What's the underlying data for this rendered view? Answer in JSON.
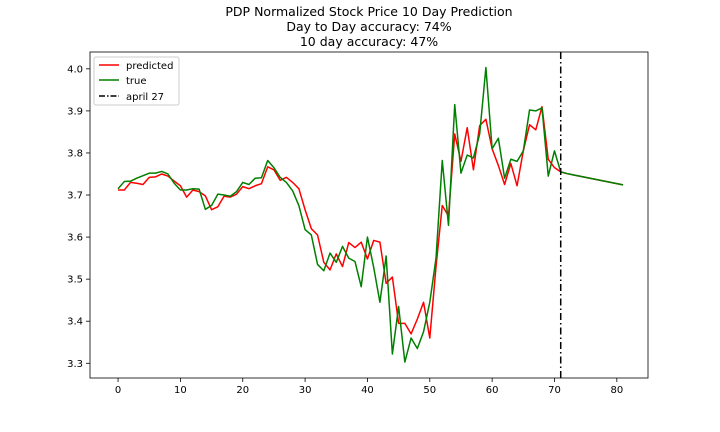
{
  "chart_data": {
    "type": "line",
    "title_lines": [
      "PDP Normalized Stock Price 10 Day Prediction",
      "Day to Day accuracy: 74%",
      "10 day accuracy: 47%"
    ],
    "xlabel": "",
    "ylabel": "",
    "xlim": [
      -4.5,
      85
    ],
    "ylim": [
      3.265,
      4.04
    ],
    "xticks": [
      0,
      10,
      20,
      30,
      40,
      50,
      60,
      70,
      80
    ],
    "yticks": [
      3.3,
      3.4,
      3.5,
      3.6,
      3.7,
      3.8,
      3.9,
      4.0
    ],
    "ytick_labels": [
      "3.3",
      "3.4",
      "3.5",
      "3.6",
      "3.7",
      "3.8",
      "3.9",
      "4.0"
    ],
    "grid": false,
    "legend_position": "top-left",
    "series": [
      {
        "name": "predicted",
        "color": "#ff0000",
        "x": [
          0,
          1,
          2,
          3,
          4,
          5,
          6,
          7,
          8,
          9,
          10,
          11,
          12,
          13,
          14,
          15,
          16,
          17,
          18,
          19,
          20,
          21,
          22,
          23,
          24,
          25,
          26,
          27,
          28,
          29,
          30,
          31,
          32,
          33,
          34,
          35,
          36,
          37,
          38,
          39,
          40,
          41,
          42,
          43,
          44,
          45,
          46,
          47,
          48,
          49,
          50,
          51,
          52,
          53,
          54,
          55,
          56,
          57,
          58,
          59,
          60,
          61,
          62,
          63,
          64,
          65,
          66,
          67,
          68,
          69,
          70,
          71,
          72,
          73,
          74,
          75,
          76,
          77,
          78,
          79,
          80,
          81
        ],
        "values": [
          3.712,
          3.712,
          3.73,
          3.728,
          3.725,
          3.742,
          3.743,
          3.75,
          3.745,
          3.733,
          3.722,
          3.695,
          3.712,
          3.708,
          3.698,
          3.665,
          3.672,
          3.697,
          3.695,
          3.702,
          3.72,
          3.715,
          3.722,
          3.727,
          3.767,
          3.76,
          3.735,
          3.742,
          3.73,
          3.715,
          3.665,
          3.62,
          3.605,
          3.54,
          3.522,
          3.56,
          3.53,
          3.587,
          3.575,
          3.588,
          3.548,
          3.592,
          3.588,
          3.49,
          3.505,
          3.395,
          3.395,
          3.37,
          3.405,
          3.445,
          3.36,
          3.53,
          3.675,
          3.65,
          3.845,
          3.78,
          3.86,
          3.76,
          3.865,
          3.88,
          3.81,
          3.77,
          3.725,
          3.775,
          3.722,
          3.805,
          3.867,
          3.855,
          3.91,
          3.785,
          3.765,
          3.755,
          3.751,
          3.748,
          3.745,
          3.742,
          3.739,
          3.736,
          3.733,
          3.73,
          3.727,
          3.724
        ]
      },
      {
        "name": "true",
        "color": "#008000",
        "x": [
          0,
          1,
          2,
          3,
          4,
          5,
          6,
          7,
          8,
          9,
          10,
          11,
          12,
          13,
          14,
          15,
          16,
          17,
          18,
          19,
          20,
          21,
          22,
          23,
          24,
          25,
          26,
          27,
          28,
          29,
          30,
          31,
          32,
          33,
          34,
          35,
          36,
          37,
          38,
          39,
          40,
          41,
          42,
          43,
          44,
          45,
          46,
          47,
          48,
          49,
          50,
          51,
          52,
          53,
          54,
          55,
          56,
          57,
          58,
          59,
          60,
          61,
          62,
          63,
          64,
          65,
          66,
          67,
          68,
          69,
          70,
          71,
          72,
          73,
          74,
          75,
          76,
          77,
          78,
          79,
          80,
          81
        ],
        "values": [
          3.715,
          3.732,
          3.733,
          3.74,
          3.746,
          3.752,
          3.752,
          3.756,
          3.75,
          3.728,
          3.712,
          3.712,
          3.715,
          3.714,
          3.666,
          3.675,
          3.702,
          3.7,
          3.697,
          3.708,
          3.73,
          3.725,
          3.74,
          3.741,
          3.782,
          3.765,
          3.742,
          3.73,
          3.71,
          3.675,
          3.618,
          3.605,
          3.535,
          3.52,
          3.562,
          3.54,
          3.578,
          3.55,
          3.542,
          3.482,
          3.6,
          3.528,
          3.445,
          3.555,
          3.322,
          3.435,
          3.303,
          3.36,
          3.335,
          3.375,
          3.445,
          3.55,
          3.782,
          3.628,
          3.915,
          3.752,
          3.795,
          3.788,
          3.845,
          4.003,
          3.81,
          3.835,
          3.74,
          3.785,
          3.78,
          3.805,
          3.902,
          3.9,
          3.907,
          3.745,
          3.805,
          3.755,
          3.751,
          3.748,
          3.745,
          3.742,
          3.739,
          3.736,
          3.733,
          3.73,
          3.727,
          3.724
        ]
      }
    ],
    "vline": {
      "name": "april 27",
      "x": 71,
      "color": "#000000",
      "style": "dash-dot"
    }
  }
}
